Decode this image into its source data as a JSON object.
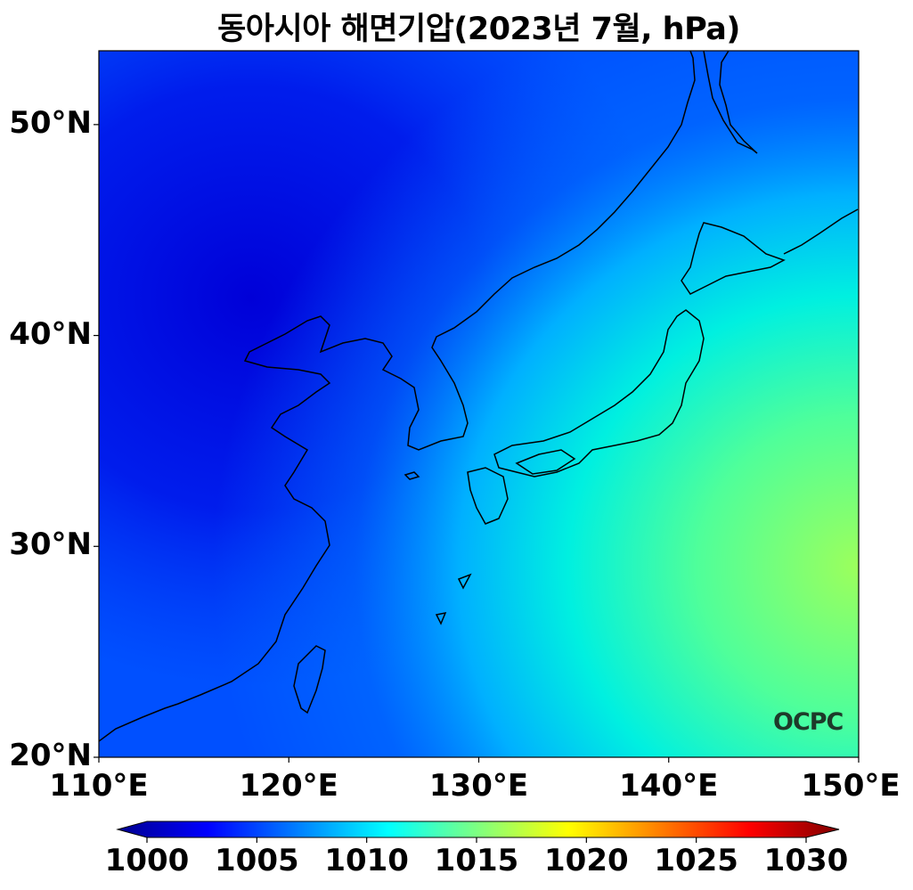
{
  "title": "동아시아 해면기압(2023년 7월, hPa)",
  "logo_text": "OCPC",
  "map": {
    "lon_range": [
      110,
      150
    ],
    "lat_range": [
      20,
      53.5
    ],
    "lat_ticks": [
      {
        "value": 20,
        "label": "20°N"
      },
      {
        "value": 30,
        "label": "30°N"
      },
      {
        "value": 40,
        "label": "40°N"
      },
      {
        "value": 50,
        "label": "50°N"
      }
    ],
    "lon_ticks": [
      {
        "value": 110,
        "label": "110°E"
      },
      {
        "value": 120,
        "label": "120°E"
      },
      {
        "value": 130,
        "label": "130°E"
      },
      {
        "value": 140,
        "label": "140°E"
      },
      {
        "value": 150,
        "label": "150°E"
      }
    ],
    "field_colors": {
      "low": "#0000e0",
      "mid": "#0060ff",
      "cyan": "#00e6e6",
      "green": "#90ff60"
    }
  },
  "colorbar": {
    "min": 1000,
    "max": 1030,
    "ticks": [
      {
        "value": 1000,
        "label": "1000"
      },
      {
        "value": 1005,
        "label": "1005"
      },
      {
        "value": 1010,
        "label": "1010"
      },
      {
        "value": 1015,
        "label": "1015"
      },
      {
        "value": 1020,
        "label": "1020"
      },
      {
        "value": 1025,
        "label": "1025"
      },
      {
        "value": 1030,
        "label": "1030"
      }
    ],
    "colormap": "jet",
    "extend": "both"
  }
}
